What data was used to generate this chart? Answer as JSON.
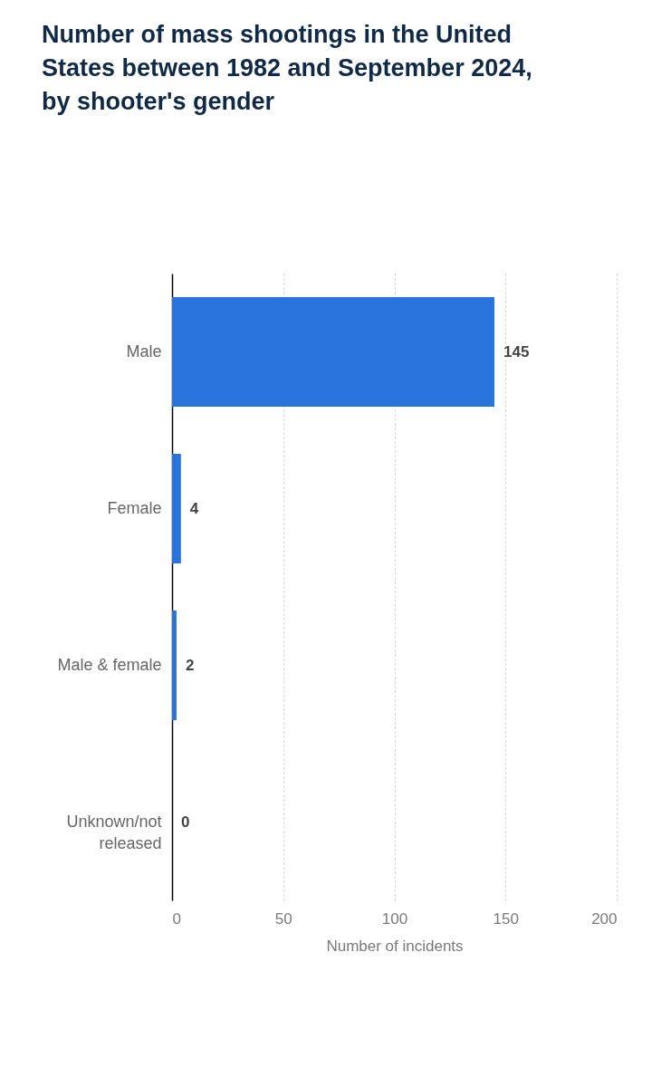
{
  "chart_data": {
    "type": "bar",
    "orientation": "horizontal",
    "title": "Number of mass shootings in the United States between 1982 and September 2024, by shooter's gender",
    "xlabel": "Number of incidents",
    "categories": [
      "Male",
      "Female",
      "Male & female",
      "Unknown/not released"
    ],
    "values": [
      145,
      4,
      2,
      0
    ],
    "color": "#2874dc",
    "xlim": [
      0,
      200
    ],
    "xticks": [
      0,
      50,
      100,
      150,
      200
    ],
    "grid": "x",
    "data_labels": true
  }
}
